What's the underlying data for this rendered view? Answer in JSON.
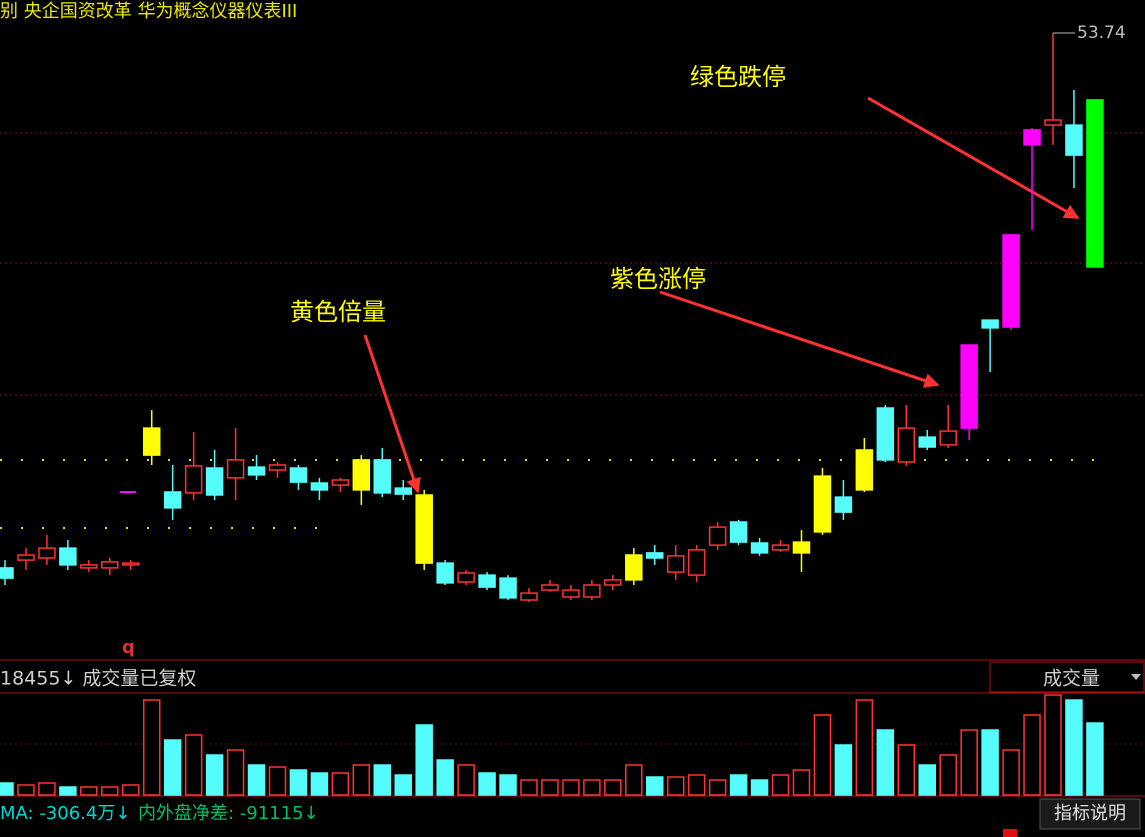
{
  "header": "别  央企国资改革  华为概念仪器仪表III",
  "chart_data": [
    {
      "type": "candlestick",
      "candles": [
        [
          35.91,
          36.17,
          35.34,
          35.57
        ],
        [
          36.17,
          36.57,
          35.84,
          36.34
        ],
        [
          36.24,
          37.01,
          36.01,
          36.57
        ],
        [
          36.57,
          36.84,
          35.84,
          36.01
        ],
        [
          35.91,
          36.17,
          35.77,
          36.01
        ],
        [
          35.91,
          36.24,
          35.67,
          36.11
        ],
        [
          36.01,
          36.17,
          35.84,
          36.07
        ],
        [
          39.67,
          41.17,
          39.34,
          40.57
        ],
        [
          38.44,
          39.34,
          37.51,
          37.91
        ],
        [
          38.41,
          40.44,
          38.17,
          39.31
        ],
        [
          39.24,
          39.84,
          38.17,
          38.34
        ],
        [
          38.91,
          40.57,
          38.17,
          39.51
        ],
        [
          39.27,
          39.67,
          38.84,
          39.01
        ],
        [
          39.17,
          39.44,
          38.91,
          39.34
        ],
        [
          39.24,
          39.34,
          38.51,
          38.77
        ],
        [
          38.74,
          38.91,
          38.17,
          38.51
        ],
        [
          38.67,
          38.91,
          38.44,
          38.84
        ],
        [
          38.51,
          39.67,
          38.01,
          39.51
        ],
        [
          39.51,
          39.91,
          38.27,
          38.41
        ],
        [
          38.57,
          38.84,
          38.17,
          38.37
        ],
        [
          38.34,
          38.51,
          35.84,
          36.07
        ],
        [
          36.07,
          36.17,
          35.34,
          35.41
        ],
        [
          35.44,
          35.84,
          35.34,
          35.74
        ],
        [
          35.67,
          35.77,
          35.17,
          35.27
        ],
        [
          35.57,
          35.67,
          34.84,
          34.91
        ],
        [
          34.84,
          35.24,
          34.77,
          35.07
        ],
        [
          35.17,
          35.51,
          35.11,
          35.34
        ],
        [
          34.94,
          35.34,
          34.84,
          35.17
        ],
        [
          34.94,
          35.51,
          34.84,
          35.34
        ],
        [
          35.34,
          35.67,
          35.17,
          35.51
        ],
        [
          35.51,
          36.57,
          35.34,
          36.34
        ],
        [
          36.41,
          36.67,
          36.01,
          36.24
        ],
        [
          35.77,
          36.67,
          35.51,
          36.31
        ],
        [
          35.67,
          36.67,
          35.44,
          36.51
        ],
        [
          36.67,
          37.44,
          36.51,
          37.27
        ],
        [
          37.44,
          37.51,
          36.67,
          36.77
        ],
        [
          36.74,
          36.91,
          36.31,
          36.41
        ],
        [
          36.51,
          36.84,
          36.44,
          36.67
        ],
        [
          36.41,
          37.17,
          35.77,
          36.77
        ],
        [
          37.11,
          39.24,
          37.01,
          38.97
        ],
        [
          38.27,
          38.84,
          37.51,
          37.77
        ],
        [
          38.51,
          40.24,
          38.44,
          39.84
        ],
        [
          41.24,
          41.34,
          39.44,
          39.51
        ],
        [
          39.44,
          41.34,
          39.31,
          40.57
        ],
        [
          40.27,
          40.51,
          39.84,
          39.94
        ],
        [
          40.01,
          41.34,
          39.91,
          40.47
        ],
        [
          40.57,
          43.34,
          40.17,
          43.34
        ],
        [
          44.17,
          44.17,
          42.44,
          43.91
        ],
        [
          43.94,
          47.01,
          43.84,
          47.01
        ],
        [
          50.01,
          50.57,
          47.17,
          50.51
        ],
        [
          50.67,
          53.74,
          50.01,
          50.84
        ],
        [
          50.67,
          51.84,
          48.57,
          49.67
        ],
        [
          51.51,
          51.51,
          45.94,
          45.94
        ]
      ],
      "ylim": [
        32.84,
        54.84
      ],
      "up_color": "#ff3232",
      "down_color": "#54fcfc",
      "highlights": [
        {
          "color": "#ffff00",
          "indices": [
            7,
            17,
            20,
            30,
            38,
            39,
            41
          ]
        },
        {
          "color": "#ff00ff",
          "indices": [
            46,
            48,
            49
          ]
        },
        {
          "color": "#00ff00",
          "indices": [
            52
          ]
        }
      ],
      "annotations": [
        "绿色跌停",
        "紫色涨停",
        "黄色倍量"
      ],
      "marker": "q"
    },
    {
      "type": "bar",
      "title": "18455↓  成交量已复权",
      "selector": "成交量",
      "values": [
        12,
        10,
        12,
        8,
        8,
        8,
        10,
        95,
        55,
        60,
        40,
        45,
        30,
        28,
        25,
        22,
        22,
        30,
        30,
        20,
        70,
        35,
        30,
        22,
        20,
        15,
        15,
        15,
        15,
        15,
        30,
        18,
        18,
        20,
        15,
        20,
        15,
        20,
        25,
        80,
        50,
        95,
        65,
        50,
        30,
        40,
        65,
        65,
        45,
        80,
        100,
        95,
        72
      ],
      "ylim": [
        0,
        100
      ],
      "footer": [
        "MA: -306.4万↓",
        "内外盘净差: -91115↓"
      ],
      "button": "指标说明"
    }
  ]
}
